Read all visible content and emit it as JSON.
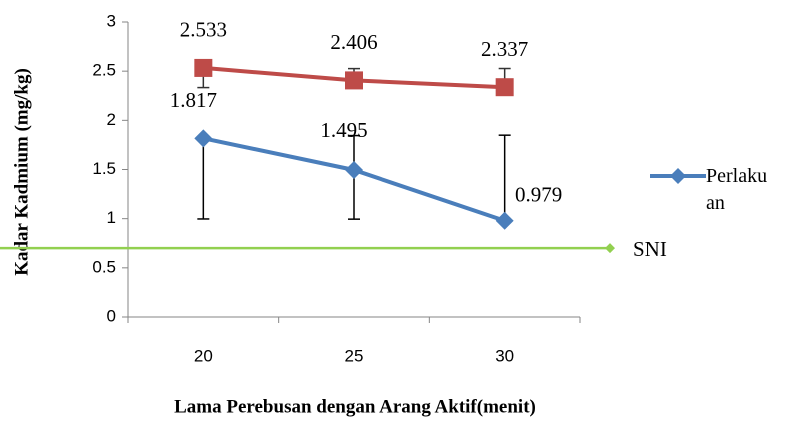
{
  "chart_data": {
    "type": "line",
    "categories": [
      "20",
      "25",
      "30"
    ],
    "series": [
      {
        "name": "Perlakuan",
        "color": "#4a7ebb",
        "marker": "diamond",
        "values": [
          1.817,
          1.495,
          0.979
        ],
        "error_minus": [
          0.82,
          0.5,
          0
        ],
        "error_plus": [
          0,
          0.35,
          0.87
        ]
      },
      {
        "color": "#be4b48",
        "marker": "square",
        "values": [
          2.533,
          2.406,
          2.337
        ],
        "error_minus": [
          0.2,
          0,
          0
        ],
        "error_plus": [
          0,
          0.12,
          0.19
        ]
      }
    ],
    "reference_line": {
      "label": "SNI",
      "value": 0.7,
      "color": "#92d050"
    },
    "ylim": [
      0,
      3
    ],
    "yticks": [
      0,
      0.5,
      1,
      1.5,
      2,
      2.5,
      3
    ],
    "xlabel": "Lama Perebusan dengan Arang Aktif(menit)",
    "ylabel": "Kadar Kadmium (mg/kg)",
    "legend": "right"
  }
}
